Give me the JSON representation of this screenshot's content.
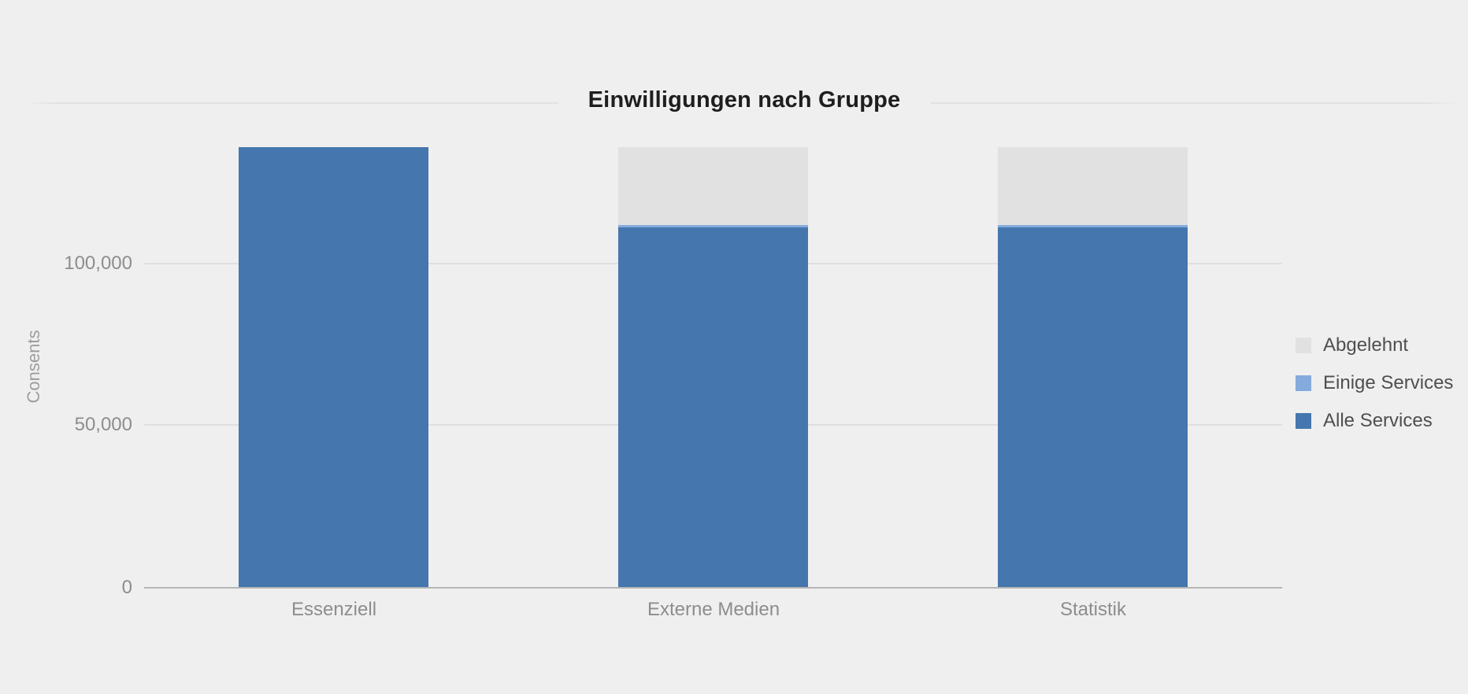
{
  "page": {
    "background": "#efefef"
  },
  "chart_data": {
    "type": "bar",
    "stacked": true,
    "title": "Einwilligungen nach Gruppe",
    "xlabel": "",
    "ylabel": "Consents",
    "categories": [
      "Essenziell",
      "Externe Medien",
      "Statistik"
    ],
    "series": [
      {
        "name": "Alle Services",
        "color": "#4576ad",
        "values": [
          135700,
          111000,
          111000
        ]
      },
      {
        "name": "Einige Services",
        "color": "#85abdd",
        "values": [
          0,
          700,
          700
        ]
      },
      {
        "name": "Abgelehnt",
        "color": "#e1e1e1",
        "values": [
          0,
          24000,
          24000
        ]
      }
    ],
    "ylim": [
      0,
      150000
    ],
    "yticks": [
      {
        "value": 100000,
        "label": "100,000"
      },
      {
        "value": 50000,
        "label": "50,000"
      },
      {
        "value": 0,
        "label": "0"
      }
    ],
    "grid": true,
    "legend_position": "right"
  },
  "legend": {
    "items": [
      {
        "label": "Abgelehnt",
        "color": "#e1e1e1"
      },
      {
        "label": "Einige Services",
        "color": "#85abdd"
      },
      {
        "label": "Alle Services",
        "color": "#4576ad"
      }
    ]
  }
}
